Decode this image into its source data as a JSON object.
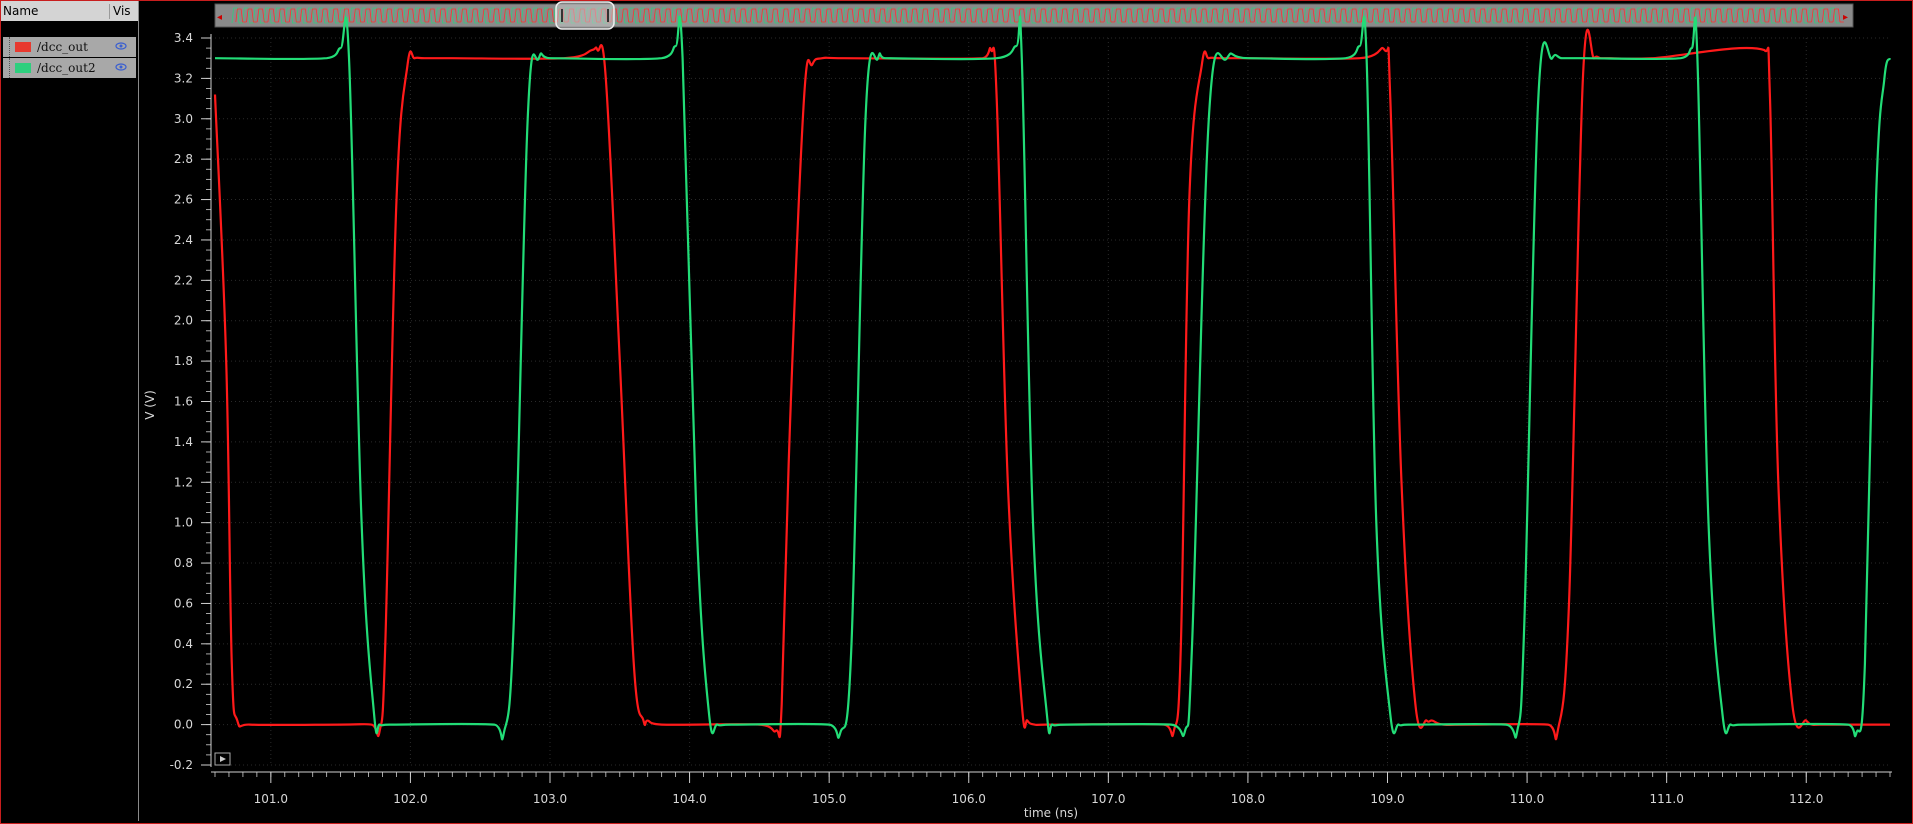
{
  "panel": {
    "header_name": "Name",
    "header_vis": "Vis",
    "signals": [
      {
        "name": "/dcc_out",
        "color": "#e8392f"
      },
      {
        "name": "/dcc_out2",
        "color": "#2ecf7e"
      }
    ]
  },
  "colors": {
    "background": "#000000",
    "grid": "#2a2a2a",
    "axis": "#d0d0d0",
    "series1": "#ff1a1a",
    "series2": "#22dd77",
    "frame": "#c81e1e"
  },
  "chart_data": {
    "type": "line",
    "xlabel": "time (ns)",
    "ylabel": "V (V)",
    "xlim": [
      100.6,
      112.6
    ],
    "ylim": [
      -0.2,
      3.4
    ],
    "grid": true,
    "xticks": [
      "101.0",
      "102.0",
      "103.0",
      "104.0",
      "105.0",
      "106.0",
      "107.0",
      "108.0",
      "109.0",
      "110.0",
      "111.0",
      "112.0"
    ],
    "yticks": [
      "-0.2",
      "0.0",
      "0.2",
      "0.4",
      "0.6",
      "0.8",
      "1.0",
      "1.2",
      "1.4",
      "1.6",
      "1.8",
      "2.0",
      "2.2",
      "2.4",
      "2.6",
      "2.8",
      "3.0",
      "3.2",
      "3.4"
    ],
    "series": [
      {
        "name": "/dcc_out",
        "x": [
          100.6,
          100.68,
          100.72,
          100.76,
          100.85,
          101.5,
          101.72,
          101.78,
          101.82,
          101.9,
          101.98,
          102.03,
          102.1,
          102.3,
          103.1,
          103.3,
          103.34,
          103.4,
          103.5,
          103.6,
          103.67,
          103.7,
          103.8,
          104.5,
          104.62,
          104.66,
          104.72,
          104.82,
          104.88,
          104.95,
          105.1,
          106.1,
          106.16,
          106.2,
          106.28,
          106.38,
          106.42,
          106.47,
          106.55,
          107.4,
          107.47,
          107.52,
          107.58,
          107.67,
          107.72,
          107.8,
          108.0,
          108.8,
          108.98,
          109.02,
          109.1,
          109.2,
          109.28,
          109.32,
          109.4,
          109.6,
          110.15,
          110.22,
          110.3,
          110.4,
          110.48,
          110.53,
          110.6,
          110.9,
          111.7,
          111.74,
          111.8,
          111.9,
          112.0,
          112.04,
          112.1,
          112.6
        ],
        "y": [
          3.12,
          1.8,
          0.3,
          0.02,
          0.0,
          0.0,
          0.0,
          -0.03,
          0.4,
          2.6,
          3.27,
          3.3,
          3.3,
          3.3,
          3.3,
          3.34,
          3.34,
          3.2,
          1.8,
          0.3,
          0.02,
          0.02,
          0.0,
          0.0,
          -0.03,
          0.1,
          1.5,
          3.1,
          3.27,
          3.3,
          3.3,
          3.3,
          3.34,
          3.1,
          1.2,
          0.1,
          0.02,
          0.0,
          0.0,
          0.0,
          -0.03,
          0.4,
          2.6,
          3.27,
          3.3,
          3.3,
          3.3,
          3.3,
          3.34,
          3.1,
          1.2,
          0.1,
          0.02,
          0.02,
          0.0,
          0.0,
          0.0,
          -0.03,
          0.6,
          3.2,
          3.3,
          3.3,
          3.3,
          3.3,
          3.34,
          3.1,
          1.2,
          0.1,
          0.02,
          0.0,
          0.0,
          0.0
        ]
      },
      {
        "name": "/dcc_out2",
        "x": [
          100.6,
          101.4,
          101.5,
          101.56,
          101.65,
          101.74,
          101.78,
          101.85,
          102.6,
          102.67,
          102.74,
          102.84,
          102.92,
          103.0,
          103.8,
          103.9,
          103.95,
          104.05,
          104.14,
          104.2,
          104.3,
          105.0,
          105.08,
          105.16,
          105.26,
          105.35,
          105.4,
          106.2,
          106.34,
          106.38,
          106.46,
          106.56,
          106.6,
          106.7,
          107.45,
          107.55,
          107.6,
          107.72,
          107.85,
          108.0,
          108.7,
          108.8,
          108.85,
          108.92,
          109.02,
          109.08,
          109.15,
          109.85,
          109.93,
          109.98,
          110.08,
          110.18,
          110.25,
          110.4,
          111.1,
          111.18,
          111.22,
          111.3,
          111.4,
          111.46,
          111.55,
          112.3,
          112.36,
          112.42,
          112.5,
          112.56,
          112.6
        ],
        "y": [
          3.3,
          3.3,
          3.35,
          3.3,
          1.0,
          0.05,
          0.0,
          0.0,
          0.0,
          -0.04,
          0.5,
          3.0,
          3.3,
          3.3,
          3.3,
          3.36,
          3.3,
          1.0,
          0.05,
          0.0,
          0.0,
          0.0,
          -0.04,
          0.4,
          3.0,
          3.3,
          3.3,
          3.3,
          3.36,
          3.3,
          1.0,
          0.05,
          0.0,
          0.0,
          0.0,
          -0.03,
          0.4,
          3.0,
          3.3,
          3.3,
          3.3,
          3.36,
          3.3,
          1.0,
          0.05,
          0.0,
          0.0,
          0.0,
          -0.03,
          0.5,
          3.1,
          3.3,
          3.3,
          3.3,
          3.3,
          3.35,
          3.3,
          1.0,
          0.05,
          0.0,
          0.0,
          0.0,
          -0.04,
          0.3,
          2.6,
          3.2,
          3.3
        ]
      }
    ]
  }
}
